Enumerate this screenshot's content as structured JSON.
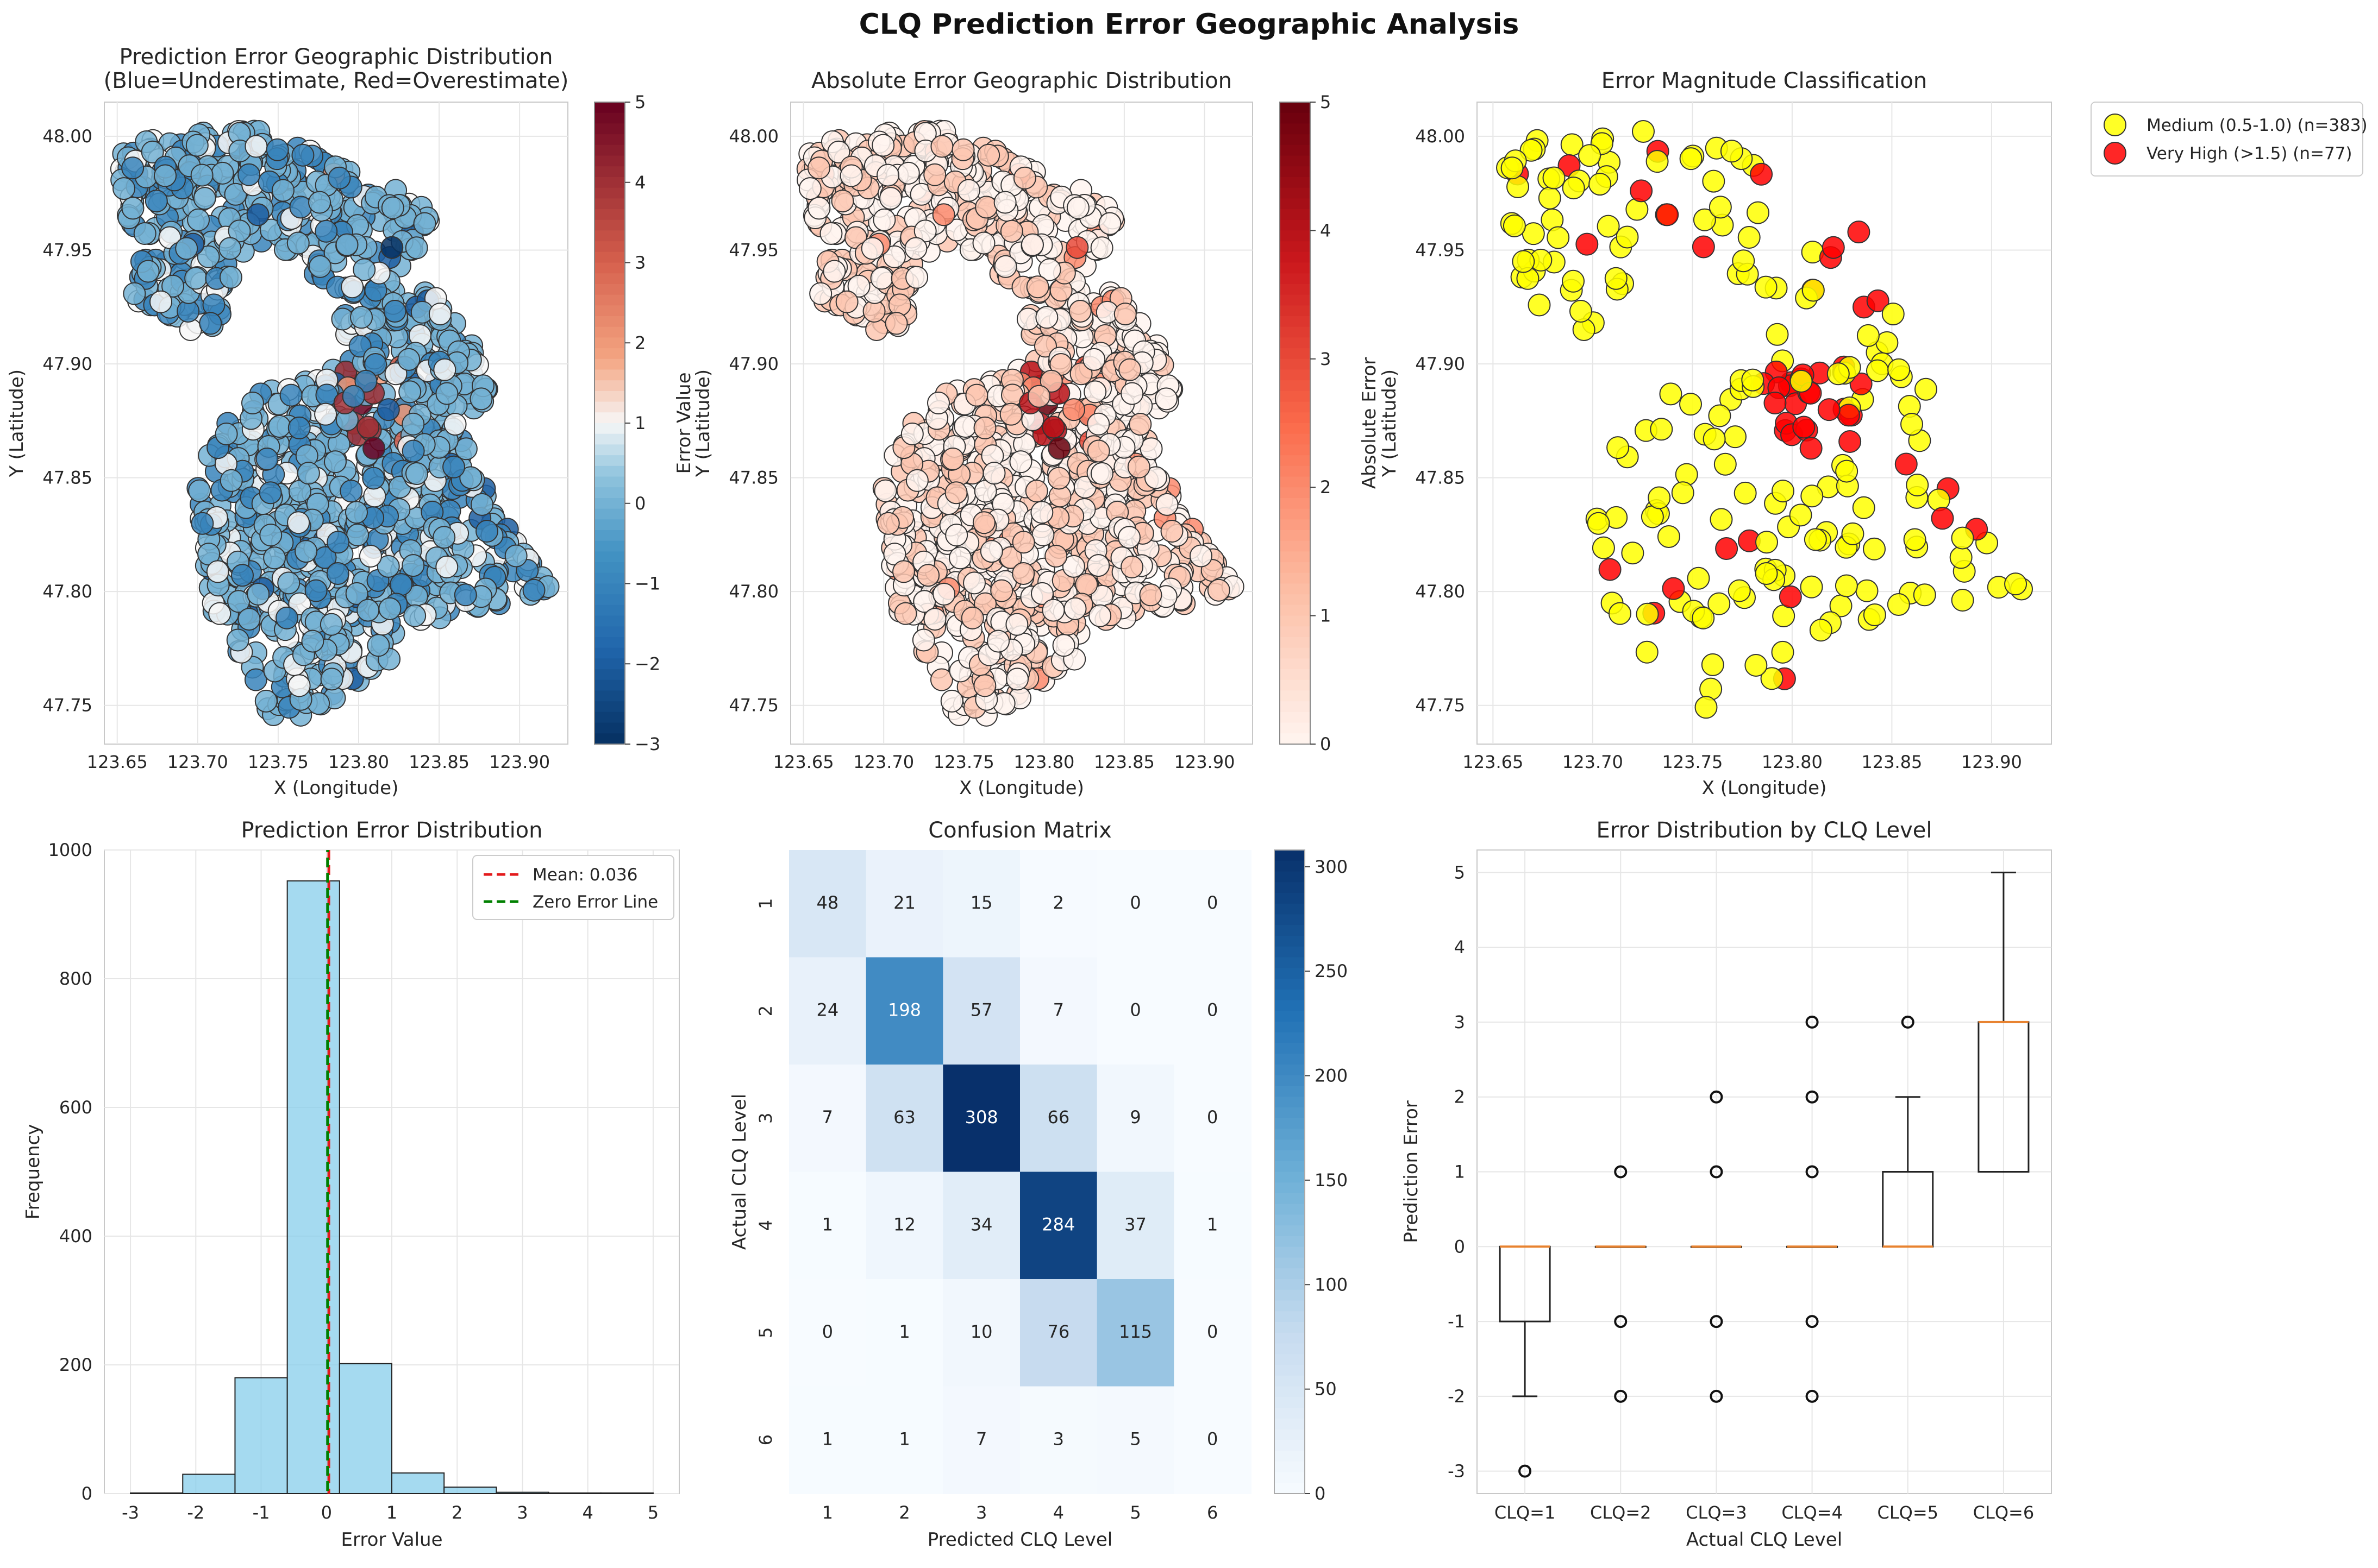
{
  "figure_title": "CLQ Prediction Error Geographic Analysis",
  "chart_data": [
    {
      "type": "scatter",
      "panel": "error-map",
      "title": "Prediction Error Geographic Distribution",
      "subtitle": "(Blue=Underestimate, Red=Overestimate)",
      "xlabel": "X (Longitude)",
      "ylabel": "Y (Latitude)",
      "xlim": [
        123.642,
        123.93
      ],
      "ylim": [
        47.733,
        48.015
      ],
      "xticks": [
        "123.65",
        "123.70",
        "123.75",
        "123.80",
        "123.85",
        "123.90"
      ],
      "yticks": [
        "47.75",
        "47.80",
        "47.85",
        "47.90",
        "47.95",
        "48.00"
      ],
      "colorbar_label": "Error Value",
      "colorbar_range": [
        -3,
        5
      ],
      "colorbar_ticks": [
        "5",
        "4",
        "3",
        "2",
        "1",
        "0",
        "−1",
        "−2",
        "−3"
      ],
      "colormap": "RdBu_r",
      "grid": true
    },
    {
      "type": "scatter",
      "panel": "abs-error-map",
      "title": "Absolute Error Geographic Distribution",
      "xlabel": "X (Longitude)",
      "ylabel": "Y (Latitude)",
      "xlim": [
        123.642,
        123.93
      ],
      "ylim": [
        47.733,
        48.015
      ],
      "xticks": [
        "123.65",
        "123.70",
        "123.75",
        "123.80",
        "123.85",
        "123.90"
      ],
      "yticks": [
        "47.75",
        "47.80",
        "47.85",
        "47.90",
        "47.95",
        "48.00"
      ],
      "colorbar_label": "Absolute Error",
      "colorbar_range": [
        0,
        5
      ],
      "colorbar_ticks": [
        "5",
        "4",
        "3",
        "2",
        "1",
        "0"
      ],
      "colormap": "Reds",
      "grid": true
    },
    {
      "type": "scatter",
      "panel": "magnitude-map",
      "title": "Error Magnitude Classification",
      "xlabel": "X (Longitude)",
      "ylabel": "Y (Latitude)",
      "xlim": [
        123.642,
        123.93
      ],
      "ylim": [
        47.733,
        48.015
      ],
      "xticks": [
        "123.65",
        "123.70",
        "123.75",
        "123.80",
        "123.85",
        "123.90"
      ],
      "yticks": [
        "47.75",
        "47.80",
        "47.85",
        "47.90",
        "47.95",
        "48.00"
      ],
      "legend": [
        {
          "label": "Medium (0.5-1.0) (n=383)",
          "color": "#ffff00",
          "n": 383
        },
        {
          "label": "Very High (>1.5) (n=77)",
          "color": "#ff0000",
          "n": 77
        }
      ],
      "legend_position": "outside-right-top",
      "grid": true
    },
    {
      "type": "bar",
      "panel": "histogram",
      "title": "Prediction Error Distribution",
      "xlabel": "Error Value",
      "ylabel": "Frequency",
      "bin_edges": [
        -3,
        -2.2,
        -1.4,
        -0.6,
        0.2,
        1.0,
        1.8,
        2.6,
        3.4,
        4.2,
        5.0
      ],
      "values": [
        1,
        30,
        180,
        952,
        202,
        32,
        10,
        2,
        1,
        1
      ],
      "xlim": [
        -3.4,
        5.4
      ],
      "ylim": [
        0,
        1000
      ],
      "xticks": [
        "-3",
        "-2",
        "-1",
        "0",
        "1",
        "2",
        "3",
        "4",
        "5"
      ],
      "yticks": [
        "0",
        "200",
        "400",
        "600",
        "800",
        "1000"
      ],
      "mean_line": {
        "value": 0.036,
        "label": "Mean: 0.036",
        "color": "#e31a1c"
      },
      "zero_line": {
        "value": 0,
        "label": "Zero Error Line",
        "color": "#008000"
      },
      "bar_color": "#87ceeb",
      "grid": true
    },
    {
      "type": "heatmap",
      "panel": "confusion-matrix",
      "title": "Confusion Matrix",
      "xlabel": "Predicted CLQ Level",
      "ylabel": "Actual CLQ Level",
      "labels": [
        "1",
        "2",
        "3",
        "4",
        "5",
        "6"
      ],
      "matrix": [
        [
          48,
          21,
          15,
          2,
          0,
          0
        ],
        [
          24,
          198,
          57,
          7,
          0,
          0
        ],
        [
          7,
          63,
          308,
          66,
          9,
          0
        ],
        [
          1,
          12,
          34,
          284,
          37,
          1
        ],
        [
          0,
          1,
          10,
          76,
          115,
          0
        ],
        [
          1,
          1,
          7,
          3,
          5,
          0
        ]
      ],
      "colorbar_range": [
        0,
        308
      ],
      "colorbar_ticks": [
        "300",
        "250",
        "200",
        "150",
        "100",
        "50",
        "0"
      ],
      "colormap": "Blues"
    },
    {
      "type": "box",
      "panel": "boxplot",
      "title": "Error Distribution by CLQ Level",
      "xlabel": "Actual CLQ Level",
      "ylabel": "Prediction Error",
      "categories": [
        "CLQ=1",
        "CLQ=2",
        "CLQ=3",
        "CLQ=4",
        "CLQ=5",
        "CLQ=6"
      ],
      "boxes": [
        {
          "whislo": -2,
          "q1": -1,
          "med": 0,
          "q3": 0,
          "whishi": 0,
          "fliers": [
            -3
          ]
        },
        {
          "whislo": 0,
          "q1": 0,
          "med": 0,
          "q3": 0,
          "whishi": 0,
          "fliers": [
            1,
            -1,
            -2
          ]
        },
        {
          "whislo": 0,
          "q1": 0,
          "med": 0,
          "q3": 0,
          "whishi": 0,
          "fliers": [
            2,
            1,
            -1,
            -2
          ]
        },
        {
          "whislo": 0,
          "q1": 0,
          "med": 0,
          "q3": 0,
          "whishi": 0,
          "fliers": [
            3,
            2,
            1,
            -1,
            -2
          ]
        },
        {
          "whislo": 0,
          "q1": 0,
          "med": 0,
          "q3": 1,
          "whishi": 2,
          "fliers": [
            3
          ]
        },
        {
          "whislo": 1,
          "q1": 1,
          "med": 3,
          "q3": 3,
          "whishi": 5,
          "fliers": []
        }
      ],
      "ylim": [
        -3.3,
        5.3
      ],
      "yticks": [
        "-3",
        "-2",
        "-1",
        "0",
        "1",
        "2",
        "3",
        "4",
        "5"
      ],
      "grid": true
    }
  ]
}
